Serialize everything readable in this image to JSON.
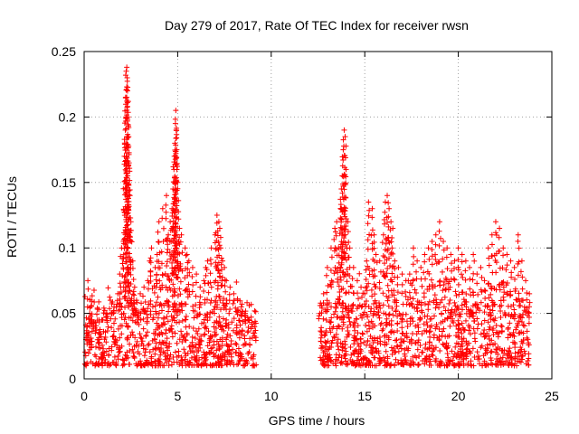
{
  "chart_data": {
    "type": "scatter",
    "title": "Day 279 of 2017, Rate Of TEC Index for receiver rwsn",
    "xlabel": "GPS time / hours",
    "ylabel": "ROTI / TECUs",
    "xlim": [
      0,
      25
    ],
    "ylim": [
      0,
      0.25
    ],
    "xticks": [
      0,
      5,
      10,
      15,
      20,
      25
    ],
    "xtick_labels": [
      "0",
      "5",
      "10",
      "15",
      "20",
      "25"
    ],
    "yticks": [
      0,
      0.05,
      0.1,
      0.15,
      0.2,
      0.25
    ],
    "ytick_labels": [
      "0",
      "0.05",
      "0.1",
      "0.15",
      "0.2",
      "0.25"
    ],
    "grid": true,
    "marker": "+",
    "color": "#ff0000",
    "series": [
      {
        "x": [
          0.1,
          0.2,
          0.3,
          0.4,
          0.5,
          0.6,
          0.8,
          1.0,
          1.2,
          1.4,
          1.6,
          1.8,
          1.9,
          2.0,
          2.1,
          2.15,
          2.2,
          2.22,
          2.25,
          2.28,
          2.3,
          2.32,
          2.35,
          2.38,
          2.4,
          2.45,
          2.5,
          2.6,
          2.7,
          2.8,
          3.0,
          3.2,
          3.4,
          3.5,
          3.6,
          3.8,
          3.9,
          4.0,
          4.2,
          4.4,
          4.5,
          4.6,
          4.7,
          4.75,
          4.8,
          4.82,
          4.85,
          4.88,
          4.9,
          4.92,
          4.95,
          5.0,
          5.1,
          5.2,
          5.4,
          5.5,
          5.6,
          5.8,
          6.0,
          6.2,
          6.4,
          6.5,
          6.6,
          6.8,
          7.0,
          7.1,
          7.2,
          7.25,
          7.3,
          7.4,
          7.5,
          7.6,
          7.8,
          8.0,
          8.2,
          8.4,
          8.6,
          8.8,
          9.0,
          9.1,
          12.6,
          12.8,
          13.0,
          13.2,
          13.4,
          13.5,
          13.6,
          13.7,
          13.75,
          13.8,
          13.85,
          13.9,
          13.95,
          14.0,
          14.1,
          14.2,
          14.4,
          14.6,
          14.8,
          15.0,
          15.1,
          15.2,
          15.4,
          15.5,
          15.6,
          15.8,
          16.0,
          16.1,
          16.2,
          16.3,
          16.4,
          16.5,
          16.6,
          16.8,
          17.0,
          17.2,
          17.4,
          17.6,
          17.8,
          18.0,
          18.2,
          18.4,
          18.6,
          18.8,
          19.0,
          19.2,
          19.4,
          19.6,
          19.8,
          20.0,
          20.2,
          20.4,
          20.6,
          20.8,
          21.0,
          21.2,
          21.4,
          21.6,
          21.8,
          22.0,
          22.2,
          22.4,
          22.6,
          22.8,
          23.0,
          23.2,
          23.4,
          23.6,
          23.8
        ],
        "y": [
          0.03,
          0.075,
          0.05,
          0.045,
          0.04,
          0.035,
          0.03,
          0.045,
          0.05,
          0.06,
          0.055,
          0.065,
          0.08,
          0.1,
          0.105,
          0.17,
          0.19,
          0.215,
          0.235,
          0.238,
          0.23,
          0.22,
          0.2,
          0.185,
          0.165,
          0.14,
          0.12,
          0.09,
          0.07,
          0.06,
          0.065,
          0.07,
          0.075,
          0.09,
          0.1,
          0.085,
          0.095,
          0.12,
          0.13,
          0.14,
          0.11,
          0.12,
          0.13,
          0.145,
          0.16,
          0.17,
          0.18,
          0.195,
          0.205,
          0.19,
          0.175,
          0.15,
          0.115,
          0.11,
          0.1,
          0.095,
          0.09,
          0.085,
          0.08,
          0.07,
          0.075,
          0.085,
          0.09,
          0.1,
          0.11,
          0.125,
          0.12,
          0.115,
          0.1,
          0.09,
          0.085,
          0.075,
          0.07,
          0.065,
          0.06,
          0.055,
          0.05,
          0.045,
          0.04,
          0.035,
          0.05,
          0.065,
          0.085,
          0.1,
          0.115,
          0.12,
          0.1,
          0.13,
          0.145,
          0.155,
          0.175,
          0.19,
          0.185,
          0.16,
          0.12,
          0.1,
          0.085,
          0.075,
          0.07,
          0.065,
          0.09,
          0.135,
          0.13,
          0.11,
          0.095,
          0.09,
          0.11,
          0.135,
          0.14,
          0.13,
          0.12,
          0.115,
          0.09,
          0.085,
          0.08,
          0.075,
          0.08,
          0.1,
          0.09,
          0.085,
          0.095,
          0.1,
          0.105,
          0.11,
          0.12,
          0.105,
          0.1,
          0.095,
          0.09,
          0.1,
          0.095,
          0.09,
          0.085,
          0.095,
          0.08,
          0.085,
          0.075,
          0.1,
          0.11,
          0.12,
          0.115,
          0.1,
          0.095,
          0.09,
          0.085,
          0.11,
          0.09,
          0.075,
          0.065
        ]
      }
    ],
    "dense_bands": [
      {
        "x_range": [
          0,
          9.2
        ],
        "y_range": [
          0.01,
          0.06
        ]
      },
      {
        "x_range": [
          12.6,
          23.8
        ],
        "y_range": [
          0.01,
          0.06
        ]
      }
    ]
  }
}
